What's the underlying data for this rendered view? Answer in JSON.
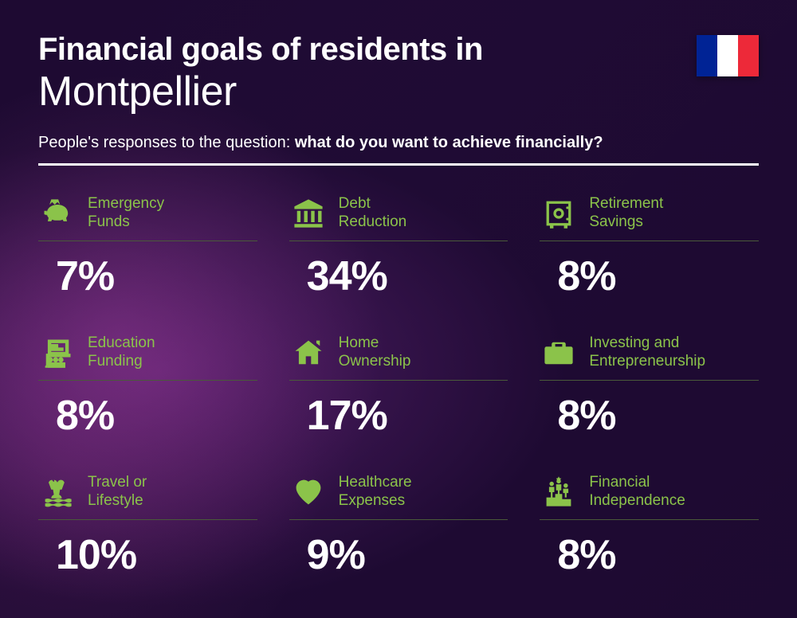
{
  "title": {
    "line1": "Financial goals of residents in",
    "line2": "Montpellier"
  },
  "subtitle": {
    "prefix": "People's responses to the question: ",
    "bold": "what do you want to achieve financially?"
  },
  "flag": {
    "stripe1": "#002395",
    "stripe2": "#ffffff",
    "stripe3": "#ed2939"
  },
  "colors": {
    "accent": "#8bc34a",
    "divider": "#4a5a3a",
    "text": "#ffffff"
  },
  "items": [
    {
      "label": "Emergency\nFunds",
      "value": "7%",
      "icon": "piggy"
    },
    {
      "label": "Debt\nReduction",
      "value": "34%",
      "icon": "bank"
    },
    {
      "label": "Retirement\nSavings",
      "value": "8%",
      "icon": "safe"
    },
    {
      "label": "Education\nFunding",
      "value": "8%",
      "icon": "education"
    },
    {
      "label": "Home\nOwnership",
      "value": "17%",
      "icon": "home"
    },
    {
      "label": "Investing and\nEntrepreneurship",
      "value": "8%",
      "icon": "briefcase"
    },
    {
      "label": "Travel or\nLifestyle",
      "value": "10%",
      "icon": "travel"
    },
    {
      "label": "Healthcare\nExpenses",
      "value": "9%",
      "icon": "health"
    },
    {
      "label": "Financial\nIndependence",
      "value": "8%",
      "icon": "podium"
    }
  ]
}
